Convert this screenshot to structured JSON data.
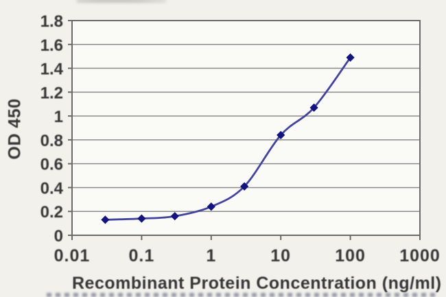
{
  "chart_data": {
    "type": "line",
    "title": "",
    "xlabel": "Recombinant Protein Concentration (ng/ml)",
    "ylabel": "OD 450",
    "x_scale": "log",
    "y_scale": "linear",
    "xlim": [
      0.01,
      1000
    ],
    "ylim": [
      0,
      1.8
    ],
    "x_ticks": [
      0.01,
      0.1,
      1,
      10,
      100,
      1000
    ],
    "x_tick_labels": [
      "0.01",
      "0.1",
      "1",
      "10",
      "100",
      "1000"
    ],
    "y_ticks": [
      0,
      0.2,
      0.4,
      0.6,
      0.8,
      1,
      1.2,
      1.4,
      1.6,
      1.8
    ],
    "y_tick_labels": [
      "0",
      "0.2",
      "0.4",
      "0.6",
      "0.8",
      "1",
      "1.2",
      "1.4",
      "1.6",
      "1.8"
    ],
    "grid": "horizontal",
    "legend": "none",
    "series": [
      {
        "name": "OD 450",
        "marker": "diamond",
        "line_style": "smooth",
        "x": [
          0.03,
          0.1,
          0.3,
          1,
          3,
          10,
          30,
          100
        ],
        "y": [
          0.13,
          0.14,
          0.16,
          0.24,
          0.41,
          0.84,
          1.07,
          1.49
        ]
      }
    ],
    "colors": {
      "line": "#4343a0",
      "marker": "#14147e",
      "grid": "#8c8c8c",
      "axis": "#6a6a6a",
      "text": "#363636",
      "plot_bg": "#fafaf6",
      "page_bg": "#f2f1ec"
    }
  }
}
